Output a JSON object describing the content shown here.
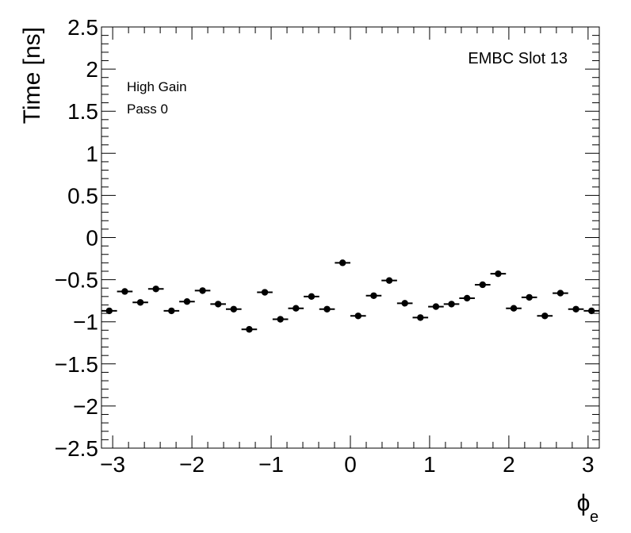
{
  "chart_data": {
    "type": "scatter",
    "title": "",
    "xlabel": "ϕ",
    "xlabel_sub": "e",
    "ylabel": "Time [ns]",
    "xlim": [
      -3.1416,
      3.1416
    ],
    "ylim": [
      -2.5,
      2.5
    ],
    "xticks": [
      -3,
      -2,
      -1,
      0,
      1,
      2,
      3
    ],
    "xtick_labels": [
      "−3",
      "−2",
      "−1",
      "0",
      "1",
      "2",
      "3"
    ],
    "yticks": [
      -2.5,
      -2,
      -1.5,
      -1,
      -0.5,
      0,
      0.5,
      1,
      1.5,
      2,
      2.5
    ],
    "ytick_labels": [
      "−2.5",
      "−2",
      "−1.5",
      "−1",
      "−0.5",
      "0",
      "0.5",
      "1",
      "1.5",
      "2",
      "2.5"
    ],
    "grid": false,
    "annotations": [
      "EMBC Slot 13",
      "High Gain",
      "Pass 0"
    ],
    "marker_color": "#000000",
    "series": [
      {
        "x": [
          -3.0434,
          -2.8471,
          -2.6507,
          -2.4544,
          -2.258,
          -2.0617,
          -1.8653,
          -1.669,
          -1.4726,
          -1.2763,
          -1.0799,
          -0.8836,
          -0.6872,
          -0.4909,
          -0.2945,
          -0.0982,
          0.0982,
          0.2945,
          0.4909,
          0.6872,
          0.8836,
          1.0799,
          1.2763,
          1.4726,
          1.669,
          1.8653,
          2.0617,
          2.258,
          2.4544,
          2.6507,
          2.8471,
          3.0434
        ],
        "y": [
          -0.87,
          -0.64,
          -0.77,
          -0.61,
          -0.87,
          -0.76,
          -0.63,
          -0.79,
          -0.85,
          -1.09,
          -0.65,
          -0.97,
          -0.84,
          -0.7,
          -0.85,
          -0.3,
          -0.93,
          -0.69,
          -0.51,
          -0.78,
          -0.95,
          -0.82,
          -0.79,
          -0.72,
          -0.56,
          -0.43,
          -0.84,
          -0.71,
          -0.93,
          -0.66,
          -0.85,
          -0.87
        ]
      }
    ]
  }
}
